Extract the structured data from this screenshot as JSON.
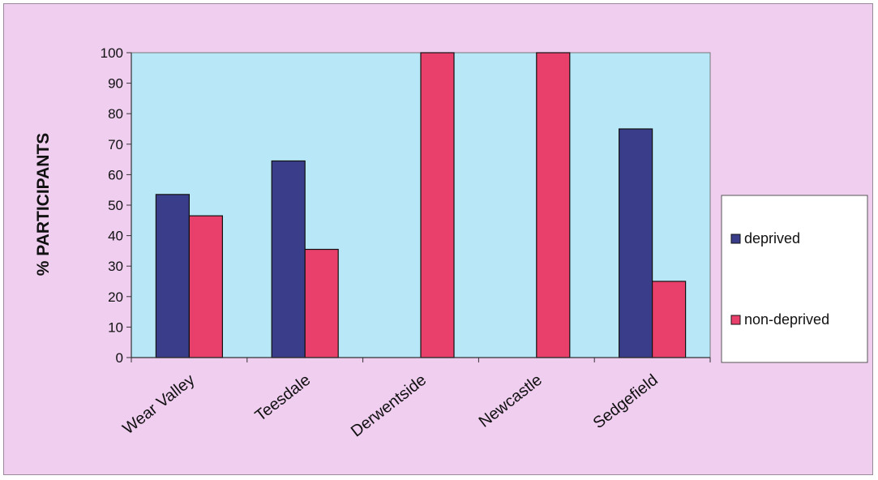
{
  "chart_data": {
    "type": "bar",
    "categories": [
      "Wear Valley",
      "Teesdale",
      "Derwentside",
      "Newcastle",
      "Sedgefield"
    ],
    "series": [
      {
        "name": "deprived",
        "values": [
          53.5,
          64.5,
          0,
          0,
          75
        ]
      },
      {
        "name": "non-deprived",
        "values": [
          46.5,
          35.5,
          100,
          100,
          25
        ]
      }
    ],
    "title": "",
    "xlabel": "",
    "ylabel": "% PARTICIPANTS",
    "ylim": [
      0,
      100
    ],
    "yticks": [
      0,
      10,
      20,
      30,
      40,
      50,
      60,
      70,
      80,
      90,
      100
    ],
    "grid": false,
    "legend_position": "right"
  },
  "colors": {
    "frame_background": "#f0cef0",
    "plot_background": "#b8e8f8",
    "deprived": "#3a3e8a",
    "non_deprived": "#e8406a",
    "legend_background": "#ffffff"
  }
}
